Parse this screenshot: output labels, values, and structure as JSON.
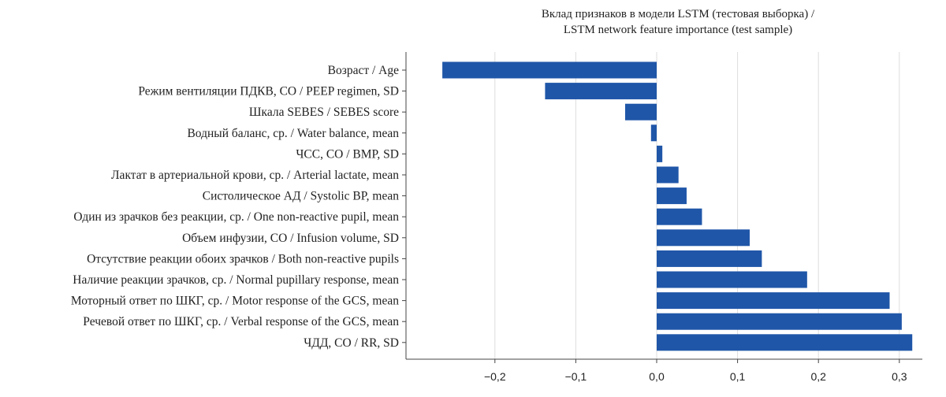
{
  "chart_data": {
    "type": "bar",
    "orientation": "horizontal",
    "title_lines": [
      "Вклад признаков в модели LSTM (тестовая выборка) /",
      "LSTM network feature importance (test sample)"
    ],
    "categories": [
      "Возраст / Age",
      "Режим вентиляции ПДКВ, СО / PEEP regimen, SD",
      "Шкала SEBES / SEBES score",
      "Водный баланс, ср. / Water balance, mean",
      "ЧСС, СО / BMP, SD",
      "Лактат в артериальной крови, ср. / Arterial lactate, mean",
      "Систолическое АД / Systolic BP, mean",
      "Один из зрачков без реакции, ср. / One non-reactive pupil, mean",
      "Объем инфузии, СО / Infusion volume, SD",
      "Отсутствие реакции обоих зрачков / Both non-reactive pupils",
      "Наличие реакции зрачков, ср. / Normal pupillary response, mean",
      "Моторный ответ по ШКГ, ср. / Motor response of the GCS, mean",
      "Речевой ответ по ШКГ, ср. / Verbal response of the GCS, mean",
      "ЧДД, СО / RR, SD"
    ],
    "values": [
      -0.265,
      -0.138,
      -0.039,
      -0.007,
      0.007,
      0.027,
      0.037,
      0.056,
      0.115,
      0.13,
      0.186,
      0.288,
      0.303,
      0.316
    ],
    "xlim": [
      -0.3,
      0.34
    ],
    "xticks": [
      -0.2,
      -0.1,
      0.0,
      0.1,
      0.2,
      0.3
    ],
    "xtick_labels": [
      "−0,2",
      "−0,1",
      "0,0",
      "0,1",
      "0,2",
      "0,3"
    ],
    "grid": "vertical",
    "bar_color": "#1f56a8",
    "grid_color": "#dddddd",
    "axis_color": "#444444"
  }
}
